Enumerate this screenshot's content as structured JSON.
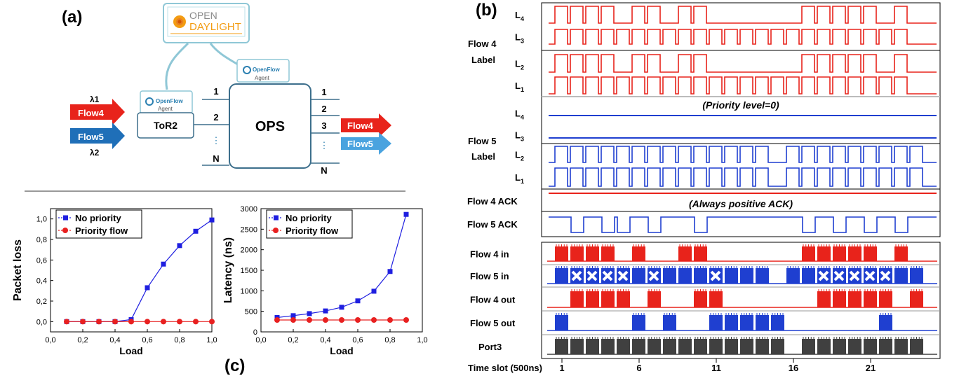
{
  "panel_a": {
    "label": "(a)",
    "controller": {
      "line1": "OPEN",
      "line2": "DAYLIGHT"
    },
    "agent_top": {
      "brand": "OpenFlow",
      "agent": "Agent"
    },
    "agent_left": {
      "brand": "OpenFlow",
      "agent": "Agent"
    },
    "tor": "ToR2",
    "ops": "OPS",
    "inputs": [
      {
        "label": "Flow4",
        "lambda": "λ1",
        "color": "#e8231b"
      },
      {
        "label": "Flow5",
        "lambda": "λ2",
        "color": "#1f6fb8"
      }
    ],
    "left_ports": [
      "1",
      "2",
      "⋮",
      "N"
    ],
    "right_ports": [
      "1",
      "2",
      "3",
      "⋮",
      "N"
    ],
    "outputs": [
      {
        "label": "Flow4",
        "color": "#e8231b"
      },
      {
        "label": "Flow5",
        "color": "#4aa3df"
      }
    ]
  },
  "panel_c": {
    "label": "(c)",
    "chart_data": [
      {
        "type": "line",
        "xlabel": "Load",
        "ylabel": "Packet loss",
        "xlim": [
          0.0,
          1.0
        ],
        "ylim": [
          -0.1,
          1.1
        ],
        "xticks": [
          "0,0",
          "0,2",
          "0,4",
          "0,6",
          "0,8",
          "1,0"
        ],
        "yticks": [
          "0,0",
          "0,2",
          "0,4",
          "0,6",
          "0,8",
          "1,0"
        ],
        "legend_position": "top-left",
        "x": [
          0.1,
          0.2,
          0.3,
          0.4,
          0.5,
          0.6,
          0.7,
          0.8,
          0.9,
          1.0
        ],
        "series": [
          {
            "name": "No priority",
            "color": "#1f1fe0",
            "marker": "square",
            "values": [
              0.0,
              0.0,
              0.0,
              0.0,
              0.02,
              0.33,
              0.56,
              0.74,
              0.88,
              0.99
            ]
          },
          {
            "name": "Priority flow",
            "color": "#e82020",
            "marker": "circle",
            "values": [
              0.0,
              0.0,
              0.0,
              0.0,
              0.0,
              0.0,
              0.0,
              0.0,
              0.0,
              0.0
            ]
          }
        ]
      },
      {
        "type": "line",
        "xlabel": "Load",
        "ylabel": "Latency (ns)",
        "xlim": [
          0.0,
          1.0
        ],
        "ylim": [
          0,
          3000
        ],
        "xticks": [
          "0,0",
          "0,2",
          "0,4",
          "0,6",
          "0,8",
          "1,0"
        ],
        "yticks": [
          "0",
          "500",
          "1000",
          "1500",
          "2000",
          "2500",
          "3000"
        ],
        "legend_position": "top-left",
        "x": [
          0.1,
          0.2,
          0.3,
          0.4,
          0.5,
          0.6,
          0.7,
          0.8,
          0.9
        ],
        "series": [
          {
            "name": "No priority",
            "color": "#1f1fe0",
            "marker": "square",
            "values": [
              350,
              395,
              445,
              510,
              600,
              755,
              990,
              1470,
              2860
            ]
          },
          {
            "name": "Priority flow",
            "color": "#e82020",
            "marker": "circle",
            "values": [
              290,
              290,
              290,
              290,
              290,
              290,
              290,
              290,
              290
            ]
          }
        ]
      }
    ]
  },
  "panel_b": {
    "label": "(b)",
    "flow4_label": [
      "Flow 4",
      "Label"
    ],
    "flow5_label": [
      "Flow 5",
      "Label"
    ],
    "priority_note": "(Priority level=0)",
    "ack_note": "(Always positive ACK)",
    "time_axis_label": "Time slot (500ns)",
    "time_ticks": [
      "1",
      "6",
      "11",
      "16",
      "21"
    ],
    "total_slots": 24,
    "traces": [
      {
        "id": "f4-l4",
        "label": "L4",
        "sub": "4",
        "base": "L",
        "color": "#e8231b",
        "group": "label",
        "slots": [
          1,
          1,
          1,
          1,
          0,
          1,
          1,
          0,
          1,
          1,
          0,
          0,
          0,
          0,
          0,
          0,
          1,
          1,
          1,
          1,
          1,
          0,
          1,
          0
        ]
      },
      {
        "id": "f4-l3",
        "label": "L3",
        "sub": "3",
        "base": "L",
        "color": "#e8231b",
        "group": "label",
        "slots": [
          1,
          1,
          1,
          1,
          1,
          1,
          1,
          1,
          1,
          1,
          1,
          1,
          1,
          1,
          1,
          1,
          1,
          1,
          1,
          1,
          1,
          1,
          1,
          0
        ]
      },
      {
        "id": "f4-l2",
        "label": "L2",
        "sub": "2",
        "base": "L",
        "color": "#e8231b",
        "group": "label",
        "slots": [
          1,
          1,
          1,
          1,
          0,
          1,
          1,
          0,
          1,
          1,
          0,
          0,
          0,
          0,
          0,
          0,
          1,
          1,
          1,
          1,
          1,
          0,
          1,
          0
        ]
      },
      {
        "id": "f4-l1",
        "label": "L1",
        "sub": "1",
        "base": "L",
        "color": "#e8231b",
        "group": "label",
        "slots": [
          1,
          1,
          1,
          1,
          1,
          1,
          1,
          1,
          1,
          1,
          1,
          1,
          1,
          1,
          1,
          1,
          1,
          1,
          1,
          1,
          1,
          1,
          1,
          0
        ]
      },
      {
        "id": "f5-l4",
        "label": "L4",
        "sub": "4",
        "base": "L",
        "color": "#1f3fd0",
        "group": "label",
        "slots": [
          0,
          0,
          0,
          0,
          0,
          0,
          0,
          0,
          0,
          0,
          0,
          0,
          0,
          0,
          0,
          0,
          0,
          0,
          0,
          0,
          0,
          0,
          0,
          0
        ]
      },
      {
        "id": "f5-l3",
        "label": "L3",
        "sub": "3",
        "base": "L",
        "color": "#1f3fd0",
        "group": "label",
        "slots": [
          0,
          0,
          0,
          0,
          0,
          0,
          0,
          0,
          0,
          0,
          0,
          0,
          0,
          0,
          0,
          0,
          0,
          0,
          0,
          0,
          0,
          0,
          0,
          0
        ]
      },
      {
        "id": "f5-l2",
        "label": "L2",
        "sub": "2",
        "base": "L",
        "color": "#1f3fd0",
        "group": "label",
        "slots": [
          1,
          1,
          1,
          1,
          1,
          1,
          1,
          1,
          1,
          1,
          1,
          1,
          1,
          1,
          0,
          1,
          1,
          1,
          1,
          1,
          1,
          1,
          1,
          1
        ]
      },
      {
        "id": "f5-l1",
        "label": "L1",
        "sub": "1",
        "base": "L",
        "color": "#1f3fd0",
        "group": "label",
        "slots": [
          1,
          1,
          1,
          1,
          1,
          1,
          1,
          1,
          1,
          1,
          1,
          1,
          1,
          1,
          0,
          1,
          1,
          1,
          1,
          1,
          1,
          1,
          1,
          1
        ]
      }
    ],
    "ack_rows": [
      {
        "id": "f4-ack",
        "label": "Flow 4 ACK",
        "color": "#e8231b",
        "slots": [
          0,
          0,
          0,
          0,
          0,
          0,
          0,
          0,
          0,
          0,
          0,
          0,
          0,
          0,
          0,
          0,
          0,
          0,
          0,
          0,
          0,
          0,
          0,
          0
        ]
      },
      {
        "id": "f5-ack",
        "label": "Flow 5 ACK",
        "color": "#1f3fd0",
        "slots": [
          1,
          0,
          1,
          0,
          0,
          1,
          0,
          1,
          1,
          0,
          1,
          1,
          1,
          1,
          1,
          1,
          0,
          1,
          0,
          1,
          0,
          1,
          0,
          1
        ]
      }
    ],
    "data_rows": [
      {
        "id": "f4-in",
        "label": "Flow 4 in",
        "color": "#e8231b",
        "slots": [
          1,
          1,
          1,
          1,
          0,
          1,
          0,
          0,
          1,
          1,
          0,
          0,
          0,
          0,
          0,
          0,
          1,
          1,
          1,
          1,
          1,
          0,
          1,
          0
        ],
        "x_marks": []
      },
      {
        "id": "f5-in",
        "label": "Flow 5 in",
        "color": "#1f3fd0",
        "slots": [
          1,
          1,
          1,
          1,
          1,
          1,
          1,
          1,
          1,
          1,
          1,
          1,
          1,
          1,
          0,
          1,
          1,
          1,
          1,
          1,
          1,
          1,
          1,
          1
        ],
        "x_marks": [
          1,
          2,
          3,
          4,
          6,
          10,
          17,
          18,
          19,
          20,
          21
        ]
      },
      {
        "id": "f4-out",
        "label": "Flow 4 out",
        "color": "#e8231b",
        "slots": [
          0,
          1,
          1,
          1,
          1,
          0,
          1,
          0,
          0,
          1,
          1,
          0,
          0,
          0,
          0,
          0,
          0,
          1,
          1,
          1,
          1,
          1,
          0,
          1
        ]
      },
      {
        "id": "f5-out",
        "label": "Flow 5 out",
        "color": "#1f3fd0",
        "slots": [
          1,
          0,
          0,
          0,
          0,
          1,
          0,
          1,
          0,
          0,
          1,
          1,
          1,
          1,
          1,
          0,
          0,
          0,
          0,
          0,
          0,
          1,
          0,
          0
        ]
      },
      {
        "id": "port3",
        "label": "Port3",
        "color": "#404040",
        "slots": [
          1,
          1,
          1,
          1,
          1,
          1,
          1,
          1,
          1,
          1,
          1,
          1,
          1,
          1,
          1,
          0,
          1,
          1,
          1,
          1,
          1,
          1,
          1,
          1
        ]
      }
    ]
  }
}
